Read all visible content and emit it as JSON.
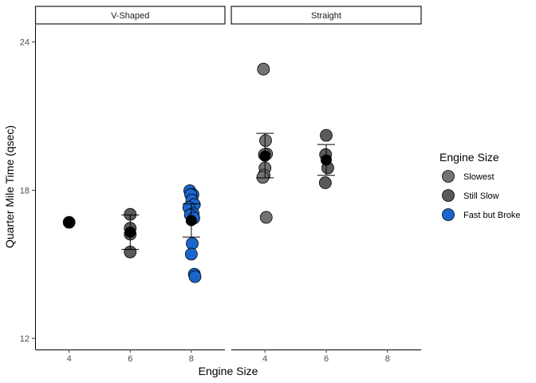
{
  "chart_data": {
    "type": "scatter",
    "xlabel": "Engine Size",
    "ylabel": "Quarter Mile Time (qsec)",
    "xlim": [
      2.9,
      9.1
    ],
    "ylim": [
      11.55,
      24.7
    ],
    "x_ticks": [
      4,
      6,
      8
    ],
    "y_ticks": [
      12,
      18,
      24
    ],
    "legend": {
      "title": "Engine Size",
      "position": "right",
      "entries": [
        {
          "label": "Slowest",
          "color": "#737373"
        },
        {
          "label": "Still Slow",
          "color": "#5a5a5a"
        },
        {
          "label": "Fast but Broke",
          "color": "#1a66cc"
        }
      ]
    },
    "colors": {
      "Slowest": "#737373",
      "Still Slow": "#5a5a5a",
      "Fast but Broke": "#1a66cc",
      "summary": "#000000"
    },
    "panels": [
      {
        "title": "V-Shaped",
        "points": [
          {
            "x": 4,
            "y": 16.7,
            "group": "Slowest"
          },
          {
            "x": 6,
            "y": 17.02,
            "group": "Still Slow"
          },
          {
            "x": 6,
            "y": 16.46,
            "group": "Still Slow"
          },
          {
            "x": 6,
            "y": 16.22,
            "group": "Still Slow"
          },
          {
            "x": 6,
            "y": 15.5,
            "group": "Still Slow"
          },
          {
            "x": 7.95,
            "y": 17.98,
            "group": "Fast but Broke"
          },
          {
            "x": 8.05,
            "y": 17.82,
            "group": "Fast but Broke"
          },
          {
            "x": 7.98,
            "y": 17.82,
            "group": "Fast but Broke"
          },
          {
            "x": 8.02,
            "y": 17.6,
            "group": "Fast but Broke"
          },
          {
            "x": 8.1,
            "y": 17.42,
            "group": "Fast but Broke"
          },
          {
            "x": 7.92,
            "y": 17.3,
            "group": "Fast but Broke"
          },
          {
            "x": 8.06,
            "y": 17.05,
            "group": "Fast but Broke"
          },
          {
            "x": 7.97,
            "y": 17.0,
            "group": "Fast but Broke"
          },
          {
            "x": 8.08,
            "y": 16.87,
            "group": "Fast but Broke"
          },
          {
            "x": 8.03,
            "y": 15.84,
            "group": "Fast but Broke"
          },
          {
            "x": 8.0,
            "y": 15.41,
            "group": "Fast but Broke"
          },
          {
            "x": 8.1,
            "y": 14.6,
            "group": "Fast but Broke"
          },
          {
            "x": 8.12,
            "y": 14.5,
            "group": "Fast but Broke"
          }
        ],
        "summary": [
          {
            "x": 4,
            "y": 16.7,
            "ymin": 16.7,
            "ymax": 16.7
          },
          {
            "x": 6,
            "y": 16.3,
            "ymin": 15.6,
            "ymax": 17.0
          },
          {
            "x": 8,
            "y": 16.77,
            "ymin": 16.1,
            "ymax": 17.45
          }
        ]
      },
      {
        "title": "Straight",
        "points": [
          {
            "x": 3.95,
            "y": 22.9,
            "group": "Slowest"
          },
          {
            "x": 4.02,
            "y": 20.01,
            "group": "Slowest"
          },
          {
            "x": 4.05,
            "y": 19.47,
            "group": "Slowest"
          },
          {
            "x": 3.98,
            "y": 19.44,
            "group": "Slowest"
          },
          {
            "x": 4.0,
            "y": 18.9,
            "group": "Slowest"
          },
          {
            "x": 3.97,
            "y": 18.61,
            "group": "Slowest"
          },
          {
            "x": 3.93,
            "y": 18.52,
            "group": "Slowest"
          },
          {
            "x": 4.04,
            "y": 16.9,
            "group": "Slowest"
          },
          {
            "x": 6.0,
            "y": 20.22,
            "group": "Still Slow"
          },
          {
            "x": 5.98,
            "y": 19.44,
            "group": "Still Slow"
          },
          {
            "x": 6.05,
            "y": 18.9,
            "group": "Still Slow"
          },
          {
            "x": 5.97,
            "y": 18.3,
            "group": "Still Slow"
          }
        ],
        "summary": [
          {
            "x": 4,
            "y": 19.38,
            "ymin": 18.5,
            "ymax": 20.3
          },
          {
            "x": 6,
            "y": 19.22,
            "ymin": 18.6,
            "ymax": 19.85
          }
        ]
      }
    ]
  }
}
